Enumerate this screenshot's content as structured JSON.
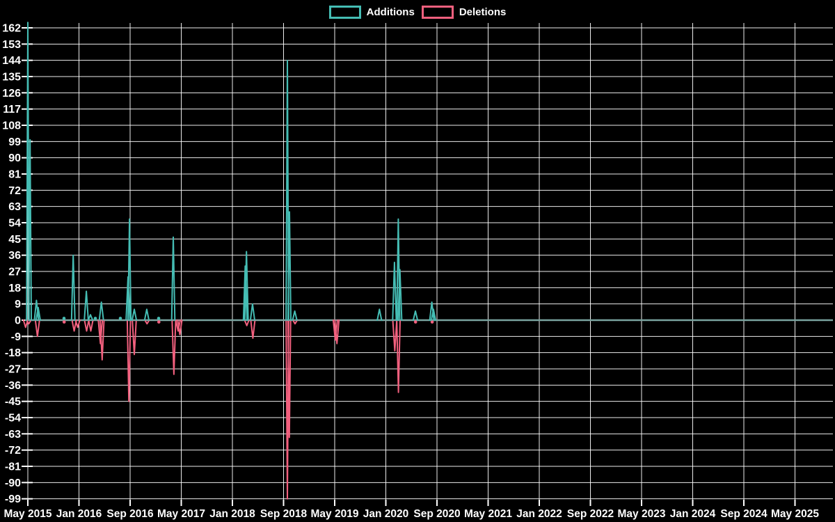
{
  "legend": {
    "items": [
      {
        "id": "additions",
        "label": "Additions",
        "color": "#45bdb4"
      },
      {
        "id": "deletions",
        "label": "Deletions",
        "color": "#f2607e"
      }
    ]
  },
  "colors": {
    "background": "#000000",
    "grid": "#ffffff",
    "text": "#ffffff",
    "zero_line": "#7aa49f",
    "additions": "#45bdb4",
    "deletions": "#f2607e"
  },
  "chart_data": {
    "type": "line",
    "title": "",
    "xlabel": "",
    "ylabel": "",
    "grid": true,
    "legend_position": "top-center",
    "x_axis": {
      "tick_labels": [
        "May 2015",
        "Jan 2016",
        "Sep 2016",
        "May 2017",
        "Jan 2018",
        "Sep 2018",
        "May 2019",
        "Jan 2020",
        "Sep 2020",
        "May 2021",
        "Jan 2022",
        "Sep 2022",
        "May 2023",
        "Jan 2024",
        "Sep 2024",
        "May 2025"
      ],
      "interval_months": 8,
      "domain_months": [
        -0.45,
        125.9
      ]
    },
    "y_axis": {
      "min": -99,
      "max": 162,
      "step": 9,
      "tick_labels": [
        162,
        153,
        144,
        135,
        126,
        117,
        108,
        99,
        90,
        81,
        72,
        63,
        54,
        45,
        36,
        27,
        18,
        9,
        0,
        -9,
        -18,
        -27,
        -36,
        -45,
        -54,
        -63,
        -72,
        -81,
        -90,
        -99
      ]
    },
    "x_unit": "months since May 2015",
    "series": [
      {
        "name": "Additions",
        "color": "#45bdb4",
        "baseline": 0,
        "spikes": [
          [
            0.0,
            165
          ],
          [
            0.35,
            100
          ],
          [
            1.35,
            11
          ],
          [
            1.62,
            7
          ],
          [
            7.1,
            36
          ],
          [
            9.15,
            16
          ],
          [
            9.8,
            3
          ],
          [
            11.5,
            10
          ],
          [
            15.67,
            24
          ],
          [
            15.9,
            56
          ],
          [
            16.65,
            6
          ],
          [
            18.6,
            6
          ],
          [
            22.75,
            46
          ],
          [
            34.0,
            30
          ],
          [
            34.2,
            38
          ],
          [
            35.15,
            9
          ],
          [
            40.6,
            144
          ],
          [
            40.93,
            60
          ],
          [
            41.75,
            5
          ],
          [
            55.0,
            6
          ],
          [
            57.35,
            32
          ],
          [
            57.95,
            56
          ],
          [
            58.2,
            28
          ],
          [
            60.63,
            5
          ],
          [
            63.2,
            10
          ],
          [
            63.45,
            6
          ]
        ],
        "dots": [
          [
            5.66,
            1
          ],
          [
            10.56,
            1
          ],
          [
            14.48,
            1
          ],
          [
            20.46,
            1
          ]
        ]
      },
      {
        "name": "Deletions",
        "color": "#f2607e",
        "baseline": 0,
        "spikes": [
          [
            -0.35,
            -4
          ],
          [
            0.15,
            -2
          ],
          [
            1.5,
            -9
          ],
          [
            7.25,
            -6
          ],
          [
            7.8,
            -4
          ],
          [
            9.2,
            -6
          ],
          [
            9.85,
            -6
          ],
          [
            11.35,
            -13
          ],
          [
            11.62,
            -22
          ],
          [
            15.8,
            -45
          ],
          [
            16.65,
            -19
          ],
          [
            18.65,
            -2
          ],
          [
            22.85,
            -30
          ],
          [
            23.5,
            -6
          ],
          [
            23.78,
            -8
          ],
          [
            34.25,
            -3
          ],
          [
            35.2,
            -10
          ],
          [
            40.6,
            -99
          ],
          [
            40.9,
            -65
          ],
          [
            41.8,
            -2
          ],
          [
            48.1,
            -11
          ],
          [
            48.35,
            -13
          ],
          [
            57.4,
            -17
          ],
          [
            57.97,
            -40
          ]
        ],
        "dots": [
          [
            5.68,
            -1
          ],
          [
            20.5,
            -1
          ],
          [
            60.65,
            -1
          ],
          [
            63.25,
            -1
          ]
        ]
      }
    ]
  }
}
